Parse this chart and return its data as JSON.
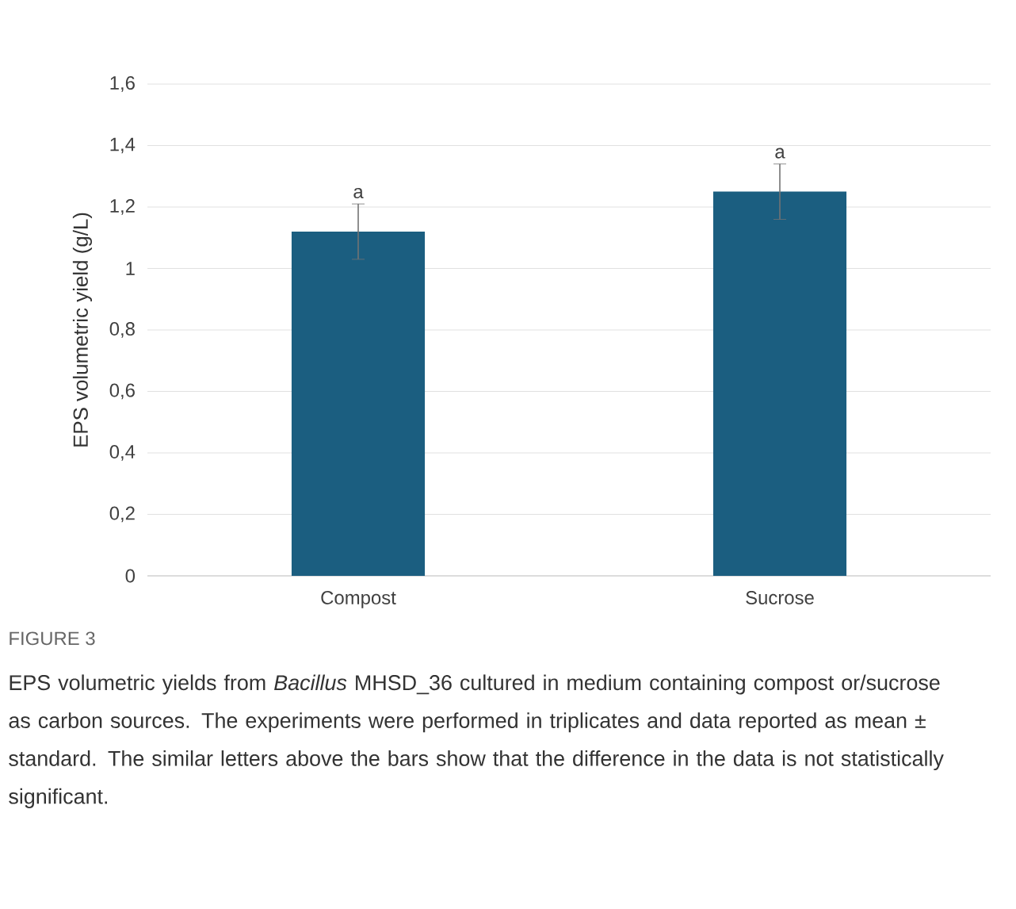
{
  "chart_data": {
    "type": "bar",
    "categories": [
      "Compost",
      "Sucrose"
    ],
    "values": [
      1.12,
      1.25
    ],
    "errors": [
      0.09,
      0.09
    ],
    "color": "#1b5e80",
    "ylabel": "EPS volumetric yield (g/L)",
    "ylim": [
      0,
      1.6
    ],
    "yticks": [
      0,
      {
        "value": 0.2,
        "label": "0,2"
      },
      {
        "value": 0.4,
        "label": "0,4"
      },
      {
        "value": 0.6,
        "label": "0,6"
      },
      {
        "value": 0.8,
        "label": "0,8"
      },
      1,
      {
        "value": 1.2,
        "label": "1,2"
      },
      {
        "value": 1.4,
        "label": "1,4"
      },
      {
        "value": 1.6,
        "label": "1,6"
      }
    ],
    "grid": "y",
    "annotations": [
      "a",
      "a",
      "FIGURE 3",
      "EPS volumetric yields from *Bacillus* MHSD_36 cultured in medium containing compost or/sucrose as carbon sources. The experiments were performed in triplicates and data reported as mean ± standard. The similar letters above the bars show that the difference in the data is not statistically significant."
    ]
  }
}
